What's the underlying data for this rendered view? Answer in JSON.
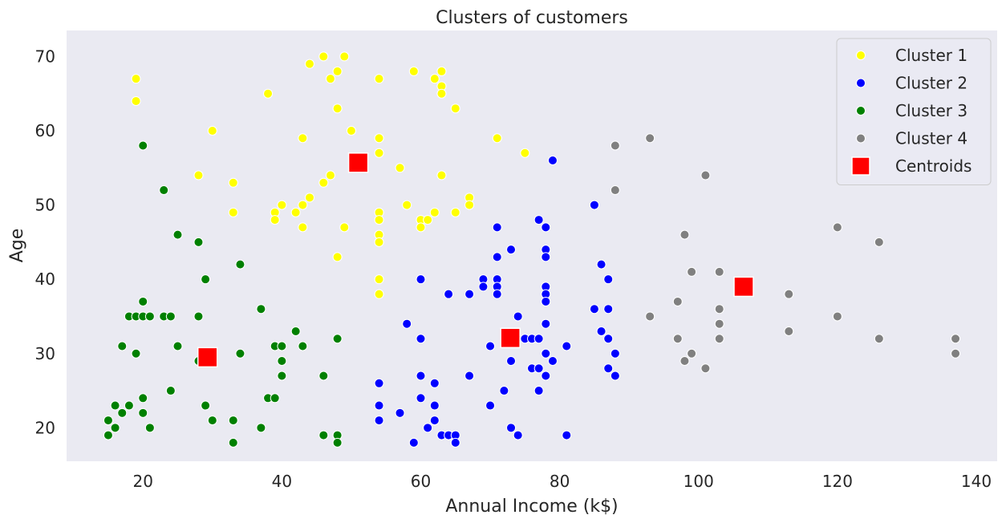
{
  "chart_data": {
    "type": "scatter",
    "title": "Clusters of customers",
    "xlabel": "Annual Income (k$)",
    "ylabel": "Age",
    "xlim": [
      9,
      143
    ],
    "ylim": [
      15.5,
      73.5
    ],
    "xticks": [
      20,
      40,
      60,
      80,
      100,
      120,
      140
    ],
    "yticks": [
      20,
      30,
      40,
      50,
      60,
      70
    ],
    "grid": false,
    "background": "#eaeaf2",
    "legend_position": "top-right",
    "series": [
      {
        "name": "Cluster 1",
        "color": "#ffff00",
        "marker": "circle",
        "points": [
          [
            19,
            67
          ],
          [
            19,
            64
          ],
          [
            28,
            54
          ],
          [
            30,
            60
          ],
          [
            33,
            53
          ],
          [
            33,
            49
          ],
          [
            38,
            65
          ],
          [
            39,
            49
          ],
          [
            39,
            48
          ],
          [
            40,
            50
          ],
          [
            42,
            49
          ],
          [
            43,
            59
          ],
          [
            43,
            50
          ],
          [
            43,
            47
          ],
          [
            44,
            69
          ],
          [
            44,
            51
          ],
          [
            46,
            70
          ],
          [
            46,
            53
          ],
          [
            47,
            67
          ],
          [
            47,
            54
          ],
          [
            48,
            68
          ],
          [
            48,
            63
          ],
          [
            48,
            43
          ],
          [
            49,
            70
          ],
          [
            49,
            47
          ],
          [
            50,
            60
          ],
          [
            54,
            67
          ],
          [
            54,
            59
          ],
          [
            54,
            57
          ],
          [
            54,
            49
          ],
          [
            54,
            48
          ],
          [
            54,
            46
          ],
          [
            54,
            45
          ],
          [
            54,
            40
          ],
          [
            54,
            38
          ],
          [
            57,
            55
          ],
          [
            58,
            50
          ],
          [
            59,
            68
          ],
          [
            60,
            48
          ],
          [
            60,
            47
          ],
          [
            61,
            48
          ],
          [
            62,
            67
          ],
          [
            62,
            49
          ],
          [
            63,
            68
          ],
          [
            63,
            66
          ],
          [
            63,
            65
          ],
          [
            63,
            54
          ],
          [
            65,
            63
          ],
          [
            65,
            49
          ],
          [
            67,
            51
          ],
          [
            67,
            50
          ],
          [
            71,
            59
          ],
          [
            75,
            57
          ]
        ]
      },
      {
        "name": "Cluster 2",
        "color": "#0000ff",
        "marker": "circle",
        "points": [
          [
            54,
            26
          ],
          [
            54,
            23
          ],
          [
            54,
            21
          ],
          [
            57,
            22
          ],
          [
            58,
            34
          ],
          [
            59,
            18
          ],
          [
            60,
            40
          ],
          [
            60,
            32
          ],
          [
            60,
            27
          ],
          [
            60,
            24
          ],
          [
            61,
            20
          ],
          [
            62,
            26
          ],
          [
            62,
            23
          ],
          [
            62,
            21
          ],
          [
            63,
            19
          ],
          [
            64,
            38
          ],
          [
            64,
            19
          ],
          [
            65,
            19
          ],
          [
            65,
            18
          ],
          [
            67,
            38
          ],
          [
            67,
            27
          ],
          [
            69,
            40
          ],
          [
            69,
            39
          ],
          [
            70,
            31
          ],
          [
            70,
            23
          ],
          [
            71,
            47
          ],
          [
            71,
            43
          ],
          [
            71,
            40
          ],
          [
            71,
            39
          ],
          [
            71,
            38
          ],
          [
            72,
            25
          ],
          [
            73,
            44
          ],
          [
            73,
            29
          ],
          [
            73,
            20
          ],
          [
            74,
            35
          ],
          [
            74,
            19
          ],
          [
            75,
            32
          ],
          [
            76,
            32
          ],
          [
            76,
            28
          ],
          [
            77,
            48
          ],
          [
            77,
            32
          ],
          [
            77,
            28
          ],
          [
            77,
            25
          ],
          [
            78,
            47
          ],
          [
            78,
            44
          ],
          [
            78,
            43
          ],
          [
            78,
            39
          ],
          [
            78,
            38
          ],
          [
            78,
            37
          ],
          [
            78,
            34
          ],
          [
            78,
            30
          ],
          [
            78,
            27
          ],
          [
            79,
            56
          ],
          [
            79,
            29
          ],
          [
            81,
            31
          ],
          [
            81,
            19
          ],
          [
            85,
            50
          ],
          [
            85,
            36
          ],
          [
            86,
            42
          ],
          [
            86,
            33
          ],
          [
            87,
            40
          ],
          [
            87,
            36
          ],
          [
            87,
            32
          ],
          [
            87,
            28
          ],
          [
            88,
            30
          ],
          [
            88,
            27
          ]
        ]
      },
      {
        "name": "Cluster 3",
        "color": "#008000",
        "marker": "circle",
        "points": [
          [
            15,
            21
          ],
          [
            15,
            19
          ],
          [
            16,
            23
          ],
          [
            16,
            20
          ],
          [
            17,
            31
          ],
          [
            17,
            22
          ],
          [
            18,
            35
          ],
          [
            18,
            23
          ],
          [
            19,
            35
          ],
          [
            19,
            30
          ],
          [
            20,
            58
          ],
          [
            20,
            37
          ],
          [
            20,
            35
          ],
          [
            20,
            24
          ],
          [
            20,
            22
          ],
          [
            21,
            35
          ],
          [
            21,
            20
          ],
          [
            23,
            52
          ],
          [
            23,
            35
          ],
          [
            24,
            35
          ],
          [
            24,
            25
          ],
          [
            25,
            46
          ],
          [
            25,
            31
          ],
          [
            28,
            45
          ],
          [
            28,
            35
          ],
          [
            28,
            29
          ],
          [
            29,
            40
          ],
          [
            29,
            23
          ],
          [
            30,
            21
          ],
          [
            33,
            21
          ],
          [
            33,
            18
          ],
          [
            34,
            42
          ],
          [
            34,
            30
          ],
          [
            37,
            36
          ],
          [
            37,
            20
          ],
          [
            38,
            24
          ],
          [
            39,
            31
          ],
          [
            39,
            24
          ],
          [
            40,
            31
          ],
          [
            40,
            29
          ],
          [
            40,
            27
          ],
          [
            42,
            33
          ],
          [
            43,
            31
          ],
          [
            46,
            27
          ],
          [
            46,
            19
          ],
          [
            48,
            32
          ],
          [
            48,
            19
          ],
          [
            48,
            18
          ]
        ]
      },
      {
        "name": "Cluster 4",
        "color": "#808080",
        "marker": "circle",
        "points": [
          [
            88,
            58
          ],
          [
            88,
            52
          ],
          [
            93,
            59
          ],
          [
            93,
            35
          ],
          [
            97,
            37
          ],
          [
            97,
            32
          ],
          [
            98,
            46
          ],
          [
            98,
            29
          ],
          [
            99,
            41
          ],
          [
            99,
            30
          ],
          [
            101,
            54
          ],
          [
            101,
            28
          ],
          [
            103,
            41
          ],
          [
            103,
            36
          ],
          [
            103,
            34
          ],
          [
            103,
            32
          ],
          [
            113,
            38
          ],
          [
            113,
            33
          ],
          [
            120,
            47
          ],
          [
            120,
            35
          ],
          [
            126,
            45
          ],
          [
            126,
            32
          ],
          [
            137,
            32
          ],
          [
            137,
            30
          ]
        ]
      },
      {
        "name": "Centroids",
        "color": "#ff0000",
        "marker": "square",
        "points": [
          [
            51,
            55.7
          ],
          [
            29.3,
            29.5
          ],
          [
            72.9,
            32.1
          ],
          [
            106.5,
            39
          ]
        ]
      }
    ]
  }
}
